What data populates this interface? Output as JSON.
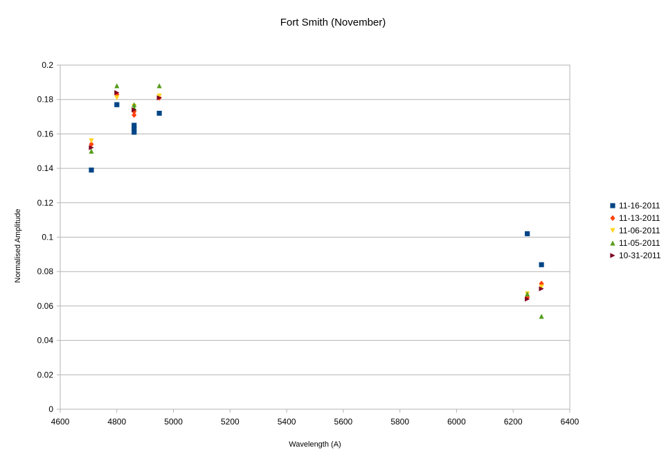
{
  "chart_data": {
    "type": "scatter",
    "title": "Fort Smith (November)",
    "xlabel": "Wavelength (A)",
    "ylabel": "Normalised Amplitude",
    "xlim": [
      4600,
      6400
    ],
    "ylim": [
      0,
      0.2
    ],
    "xticks": [
      "4600",
      "4800",
      "5000",
      "5200",
      "5400",
      "5600",
      "5800",
      "6000",
      "6200",
      "6400"
    ],
    "yticks": [
      "0",
      "0.02",
      "0.04",
      "0.06",
      "0.08",
      "0.1",
      "0.12",
      "0.14",
      "0.16",
      "0.18",
      "0.2"
    ],
    "grid": "horizontal",
    "legend_position": "right",
    "series": [
      {
        "name": "11-16-2011",
        "marker": "square",
        "color": "#004586",
        "points": [
          [
            4710,
            0.139
          ],
          [
            4800,
            0.177
          ],
          [
            4861,
            0.161
          ],
          [
            4861,
            0.163
          ],
          [
            4861,
            0.165
          ],
          [
            4950,
            0.172
          ],
          [
            6250,
            0.102
          ],
          [
            6300,
            0.084
          ]
        ]
      },
      {
        "name": "11-13-2011",
        "marker": "diamond",
        "color": "#ff420e",
        "points": [
          [
            4710,
            0.154
          ],
          [
            4800,
            0.183
          ],
          [
            4861,
            0.171
          ],
          [
            4861,
            0.173
          ],
          [
            4950,
            0.181
          ],
          [
            6250,
            0.065
          ],
          [
            6300,
            0.073
          ]
        ]
      },
      {
        "name": "11-06-2011",
        "marker": "triangle-down",
        "color": "#ffd320",
        "points": [
          [
            4710,
            0.156
          ],
          [
            4800,
            0.181
          ],
          [
            4861,
            0.176
          ],
          [
            4950,
            0.182
          ],
          [
            6250,
            0.067
          ],
          [
            6300,
            0.071
          ]
        ]
      },
      {
        "name": "11-05-2011",
        "marker": "triangle-up",
        "color": "#579d1c",
        "points": [
          [
            4710,
            0.15
          ],
          [
            4800,
            0.188
          ],
          [
            4861,
            0.177
          ],
          [
            4861,
            0.175
          ],
          [
            4950,
            0.188
          ],
          [
            6250,
            0.067
          ],
          [
            6300,
            0.054
          ]
        ]
      },
      {
        "name": "10-31-2011",
        "marker": "triangle-right",
        "color": "#7e0021",
        "points": [
          [
            4710,
            0.152
          ],
          [
            4800,
            0.184
          ],
          [
            4861,
            0.174
          ],
          [
            4950,
            0.181
          ],
          [
            6250,
            0.064
          ],
          [
            6300,
            0.07
          ]
        ]
      }
    ]
  }
}
